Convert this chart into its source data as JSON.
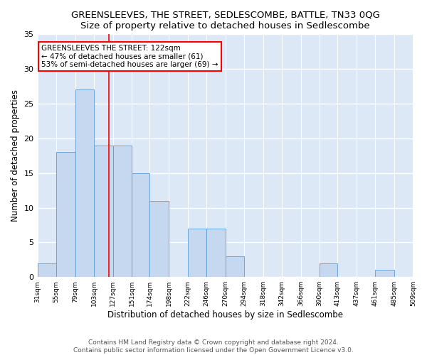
{
  "title": "GREENSLEEVES, THE STREET, SEDLESCOMBE, BATTLE, TN33 0QG",
  "subtitle": "Size of property relative to detached houses in Sedlescombe",
  "xlabel": "Distribution of detached houses by size in Sedlescombe",
  "ylabel": "Number of detached properties",
  "bin_labels": [
    "31sqm",
    "55sqm",
    "79sqm",
    "103sqm",
    "127sqm",
    "151sqm",
    "174sqm",
    "198sqm",
    "222sqm",
    "246sqm",
    "270sqm",
    "294sqm",
    "318sqm",
    "342sqm",
    "366sqm",
    "390sqm",
    "413sqm",
    "437sqm",
    "461sqm",
    "485sqm",
    "509sqm"
  ],
  "bin_edges": [
    31,
    55,
    79,
    103,
    127,
    151,
    174,
    198,
    222,
    246,
    270,
    294,
    318,
    342,
    366,
    390,
    413,
    437,
    461,
    485,
    509
  ],
  "values": [
    2,
    18,
    27,
    19,
    19,
    15,
    11,
    0,
    7,
    7,
    3,
    0,
    0,
    0,
    0,
    2,
    0,
    0,
    1,
    0,
    0
  ],
  "bar_color": "#c5d8f0",
  "bar_edge_color": "#5b9bd5",
  "bg_color": "#dde8f7",
  "grid_color": "#ffffff",
  "vline_x": 122,
  "vline_color": "red",
  "annotation_text": "GREENSLEEVES THE STREET: 122sqm\n← 47% of detached houses are smaller (61)\n53% of semi-detached houses are larger (69) →",
  "annotation_box_color": "#ffffff",
  "annotation_box_edge": "red",
  "ylim": [
    0,
    35
  ],
  "yticks": [
    0,
    5,
    10,
    15,
    20,
    25,
    30,
    35
  ],
  "footer": "Contains HM Land Registry data © Crown copyright and database right 2024.\nContains public sector information licensed under the Open Government Licence v3.0.",
  "title_fontsize": 9.5,
  "xlabel_fontsize": 8.5,
  "ylabel_fontsize": 8.5,
  "annotation_fontsize": 7.5,
  "tick_fontsize": 6.5,
  "footer_fontsize": 6.5
}
